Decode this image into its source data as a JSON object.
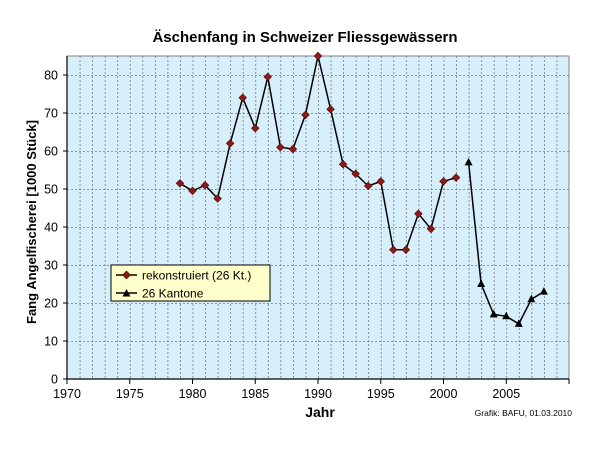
{
  "chart_data": {
    "type": "line",
    "title": "Äschenfang in Schweizer Fliessgewässern",
    "xlabel": "Jahr",
    "ylabel": "Fang Angelfischerei [1000 Stück]",
    "xlim": [
      1970,
      2010
    ],
    "ylim": [
      0,
      85
    ],
    "x_ticks": [
      1970,
      1975,
      1980,
      1985,
      1990,
      1995,
      2000,
      2005
    ],
    "y_ticks": [
      0,
      10,
      20,
      30,
      40,
      50,
      60,
      70,
      80
    ],
    "grid": true,
    "legend_position": "lower-left",
    "plot_background": "#d6effa",
    "line_color": "#000000",
    "series": [
      {
        "name": "rekonstruiert (26 Kt.)",
        "marker": "diamond",
        "marker_color": "#8b1a1a",
        "x": [
          1979,
          1980,
          1981,
          1982,
          1983,
          1984,
          1985,
          1986,
          1987,
          1988,
          1989,
          1990,
          1991,
          1992,
          1993,
          1994,
          1995,
          1996,
          1997,
          1998,
          1999,
          2000,
          2001
        ],
        "values": [
          51.5,
          49.5,
          51,
          47.5,
          62,
          74,
          66,
          79.5,
          61,
          60.5,
          69.5,
          85,
          71,
          56.5,
          54,
          50.8,
          52,
          34,
          34,
          43.5,
          39.5,
          52,
          53
        ]
      },
      {
        "name": "26 Kantone",
        "marker": "triangle",
        "marker_color": "#000000",
        "x": [
          2002,
          2003,
          2004,
          2005,
          2006,
          2007,
          2008
        ],
        "values": [
          57,
          25,
          17,
          16.5,
          14.5,
          21,
          23
        ]
      }
    ],
    "credit": "Grafik: BAFU,  01.03.2010"
  }
}
